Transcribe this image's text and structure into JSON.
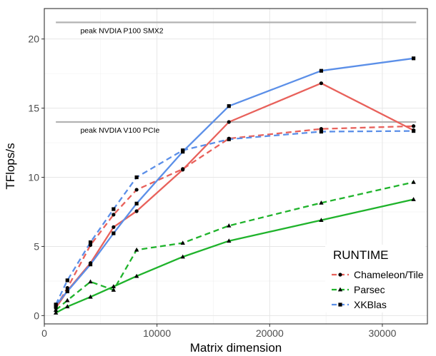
{
  "chart_data": {
    "type": "line",
    "xlabel": "Matrix dimension",
    "ylabel": "TFlops/s",
    "xlim": [
      0,
      34000
    ],
    "ylim": [
      -0.6,
      22.2
    ],
    "xticks": [
      0,
      10000,
      20000,
      30000
    ],
    "xtick_labels": [
      "0",
      "10000",
      "20000",
      "30000"
    ],
    "yticks": [
      0,
      5,
      10,
      15,
      20
    ],
    "ytick_labels": [
      "0",
      "5",
      "10",
      "15",
      "20"
    ],
    "grid": true,
    "reference_lines": [
      {
        "label": "peak NVDIA P100 SMX2",
        "y": 21.2
      },
      {
        "label": "peak NVDIA V100 PCIe",
        "y": 14.0
      }
    ],
    "legend": {
      "title": "RUNTIME",
      "position": "bottom-right",
      "entries": [
        "Chameleon/Tile",
        "Parsec",
        "XKBlas"
      ]
    },
    "series": [
      {
        "name": "Chameleon/Tile",
        "variant": "solid",
        "color": "#e8615b",
        "marker": "circle",
        "x": [
          1024,
          2048,
          4096,
          6144,
          8192,
          12288,
          16384,
          24576,
          32768
        ],
        "y": [
          0.55,
          1.8,
          3.8,
          6.4,
          7.55,
          10.55,
          14.0,
          16.8,
          13.4
        ]
      },
      {
        "name": "Chameleon/Tile",
        "variant": "dashed",
        "color": "#e8615b",
        "marker": "circle",
        "x": [
          1024,
          2048,
          4096,
          6144,
          8192,
          12288,
          16384,
          24576,
          32768
        ],
        "y": [
          0.6,
          2.0,
          5.1,
          7.3,
          9.1,
          10.6,
          12.8,
          13.5,
          13.7
        ]
      },
      {
        "name": "Parsec",
        "variant": "solid",
        "color": "#1fb32b",
        "marker": "triangle",
        "x": [
          1024,
          2048,
          4096,
          6144,
          8192,
          12288,
          16384,
          24576,
          32768
        ],
        "y": [
          0.2,
          0.65,
          1.35,
          2.1,
          2.85,
          4.25,
          5.4,
          6.9,
          8.4
        ]
      },
      {
        "name": "Parsec",
        "variant": "dashed",
        "color": "#1fb32b",
        "marker": "triangle",
        "x": [
          1024,
          2048,
          4096,
          6144,
          8192,
          12288,
          16384,
          24576,
          32768
        ],
        "y": [
          0.4,
          1.1,
          2.45,
          1.85,
          4.75,
          5.25,
          6.5,
          8.15,
          9.65
        ]
      },
      {
        "name": "XKBlas",
        "variant": "solid",
        "color": "#5b8fe8",
        "marker": "square",
        "x": [
          1024,
          2048,
          4096,
          6144,
          8192,
          12288,
          16384,
          24576,
          32768
        ],
        "y": [
          0.75,
          1.75,
          3.7,
          5.95,
          8.1,
          11.85,
          15.15,
          17.7,
          18.6
        ]
      },
      {
        "name": "XKBlas",
        "variant": "dashed",
        "color": "#5b8fe8",
        "marker": "square",
        "x": [
          1024,
          2048,
          4096,
          6144,
          8192,
          12288,
          16384,
          24576,
          32768
        ],
        "y": [
          0.8,
          2.55,
          5.3,
          7.7,
          10.0,
          11.95,
          12.75,
          13.3,
          13.35
        ]
      }
    ]
  }
}
